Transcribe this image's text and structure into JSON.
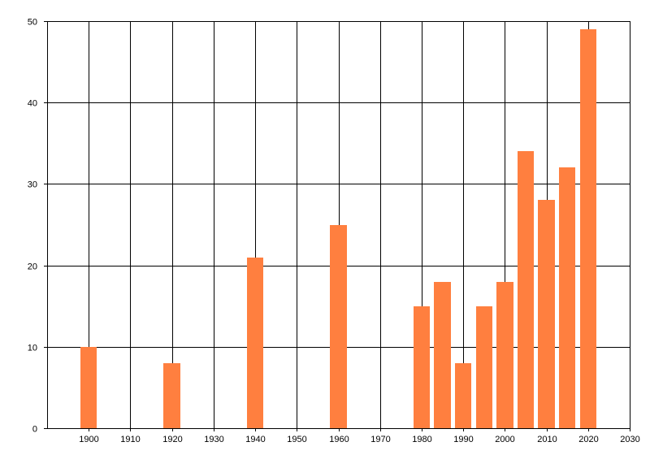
{
  "chart_data": {
    "type": "bar",
    "title": "",
    "xlabel": "",
    "ylabel": "",
    "x": [
      1900,
      1920,
      1940,
      1960,
      1980,
      1985,
      1990,
      1995,
      2000,
      2005,
      2010,
      2015,
      2020
    ],
    "values": [
      10,
      8,
      21,
      25,
      15,
      18,
      8,
      15,
      18,
      34,
      28,
      32,
      49
    ],
    "bar_width_years": 4,
    "xlim": [
      1890,
      2030
    ],
    "ylim": [
      0,
      50
    ],
    "xticks": [
      1900,
      1910,
      1920,
      1930,
      1940,
      1950,
      1960,
      1970,
      1980,
      1990,
      2000,
      2010,
      2020,
      2030
    ],
    "yticks": [
      0,
      10,
      20,
      30,
      40,
      50
    ],
    "grid": true,
    "legend": "none",
    "bar_color": "#FF7F3F",
    "grid_color": "#000000",
    "background": "#FFFFFF"
  }
}
